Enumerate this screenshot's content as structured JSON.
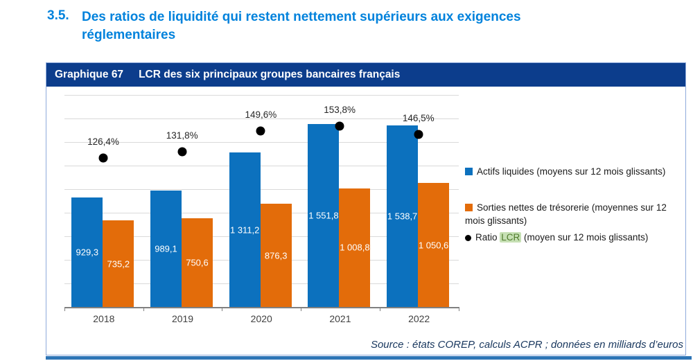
{
  "heading": {
    "number": "3.5.",
    "line1": "Des ratios de liquidité qui restent nettement supérieurs aux exigences",
    "line2": "réglementaires"
  },
  "chart": {
    "title_label": "Graphique 67",
    "title_text": "LCR des six principaux groupes bancaires français",
    "source": "Source : états COREP, calculs ACPR ; données en milliards d’euros",
    "colors": {
      "heading_blue": "#0082DC",
      "title_bar_bg": "#0C3D8C",
      "box_border": "#8EAADB",
      "bottom_rule": "#2E75B6",
      "blue_bar": "#0C71BE",
      "orange_bar": "#E36C0A",
      "dot_black": "#000000",
      "gridline": "#D9D9D9",
      "lcr_highlight_bg": "#C6E0B4",
      "lcr_highlight_text": "#4E7A2B",
      "source_text": "#17365D"
    },
    "legend": [
      {
        "marker": "square",
        "color": "#0C71BE",
        "text": "Actifs liquides (moyens sur 12 mois glissants)"
      },
      {
        "marker": "square",
        "color": "#E36C0A",
        "text": "Sorties nettes de trésorerie (moyennes sur 12 mois glissants)"
      },
      {
        "marker": "dot",
        "color": "#000000",
        "text_prefix": "Ratio ",
        "text_highlight": "LCR",
        "text_suffix": " (moyen sur 12 mois glissants)"
      }
    ]
  },
  "chart_data": {
    "type": "bar",
    "categories": [
      "2018",
      "2019",
      "2020",
      "2021",
      "2022"
    ],
    "series": [
      {
        "name": "Actifs liquides (moyens sur 12 mois glissants)",
        "type": "bar",
        "color": "#0C71BE",
        "values": [
          929.3,
          989.1,
          1311.2,
          1551.8,
          1538.7
        ],
        "labels": [
          "929,3",
          "989,1",
          "1 311,2",
          "1 551,8",
          "1 538,7"
        ]
      },
      {
        "name": "Sorties nettes de trésorerie (moyennes sur 12 mois glissants)",
        "type": "bar",
        "color": "#E36C0A",
        "values": [
          735.2,
          750.6,
          876.3,
          1008.8,
          1050.6
        ],
        "labels": [
          "735,2",
          "750,6",
          "876,3",
          "1 008,8",
          "1 050,6"
        ]
      },
      {
        "name": "Ratio LCR (moyen sur 12 mois glissants)",
        "type": "scatter",
        "color": "#000000",
        "axis": "secondary",
        "values": [
          126.4,
          131.8,
          149.6,
          153.8,
          146.5
        ],
        "labels": [
          "126,4%",
          "131,8%",
          "149,6%",
          "153,8%",
          "146,5%"
        ]
      }
    ],
    "title": "LCR des six principaux groupes bancaires français",
    "xlabel": "",
    "ylabel": "",
    "primary_ylim": [
      0,
      1800
    ],
    "primary_grid_step": 200,
    "secondary_ylim": [
      0,
      180
    ],
    "grid": true,
    "legend_position": "right",
    "units": "milliards d'euros"
  }
}
